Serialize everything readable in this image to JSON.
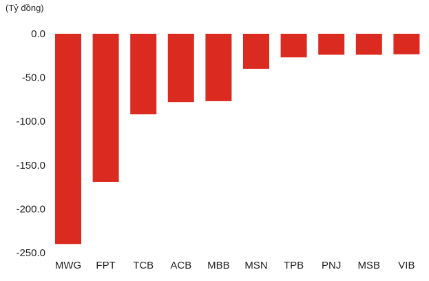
{
  "chart_data": {
    "type": "bar",
    "unit_label": "(Tỷ đồng)",
    "categories": [
      "MWG",
      "FPT",
      "TCB",
      "ACB",
      "MBB",
      "MSN",
      "TPB",
      "PNJ",
      "MSB",
      "VIB"
    ],
    "values": [
      -240.0,
      -169.0,
      -92.0,
      -78.0,
      -77.0,
      -40.0,
      -27.0,
      -24.0,
      -24.0,
      -23.5
    ],
    "yticks": [
      "0.0",
      "-50.0",
      "-100.0",
      "-150.0",
      "-200.0",
      "-250.0"
    ],
    "ytick_values": [
      0,
      -50,
      -100,
      -150,
      -200,
      -250
    ],
    "ylim": [
      -250,
      0
    ],
    "grid": false,
    "legend": "none",
    "bar_color": "#db2b21"
  }
}
